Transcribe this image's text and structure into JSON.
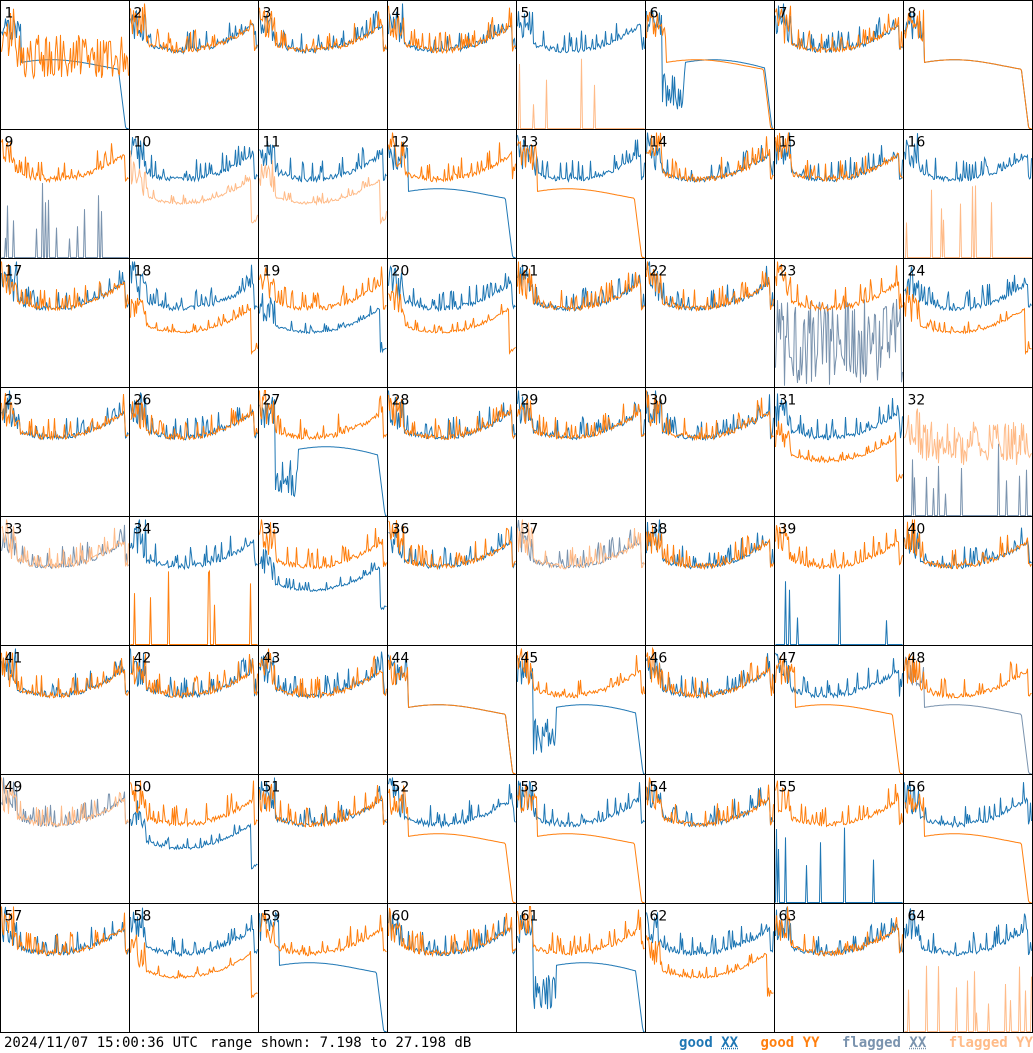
{
  "footer": {
    "timestamp": "2024/11/07 15:00:36 UTC",
    "range_text": "range shown: 7.198 to 27.198 dB",
    "legend": {
      "good_xx": {
        "word": "good",
        "pol": "XX"
      },
      "good_yy": {
        "word": "good",
        "pol": "YY"
      },
      "flagged_xx": {
        "word": "flagged",
        "pol": "XX"
      },
      "flagged_yy": {
        "word": "flagged",
        "pol": "YY"
      }
    }
  },
  "colors": {
    "good_xx": "#1f77b4",
    "good_yy": "#ff7f0e",
    "flagged_xx": "#7a93ae",
    "flagged_yy": "#ffbb88"
  },
  "chart_data": {
    "type": "line",
    "ylim": [
      7.198,
      27.198
    ],
    "yunit": "dB",
    "grid": false,
    "layout": "8x8 small multiples",
    "panels": [
      {
        "label": "1",
        "xx": "flat",
        "yy": "spiky",
        "xx_state": "good",
        "yy_state": "good"
      },
      {
        "label": "2",
        "xx": "normal",
        "yy": "normal",
        "xx_state": "good",
        "yy_state": "good"
      },
      {
        "label": "3",
        "xx": "normal",
        "yy": "normal",
        "xx_state": "good",
        "yy_state": "good"
      },
      {
        "label": "4",
        "xx": "normal",
        "yy": "normal",
        "xx_state": "good",
        "yy_state": "good"
      },
      {
        "label": "5",
        "xx": "normal",
        "yy": "spikes",
        "xx_state": "good",
        "yy_state": "flagged"
      },
      {
        "label": "6",
        "xx": "dip",
        "yy": "flat",
        "xx_state": "good",
        "yy_state": "good"
      },
      {
        "label": "7",
        "xx": "normal",
        "yy": "normal",
        "xx_state": "good",
        "yy_state": "good"
      },
      {
        "label": "8",
        "xx": "flat",
        "yy": "flat",
        "xx_state": "good",
        "yy_state": "good"
      },
      {
        "label": "9",
        "xx": "spikes",
        "yy": "normal",
        "xx_state": "flagged",
        "yy_state": "good"
      },
      {
        "label": "10",
        "xx": "normal",
        "yy": "low",
        "xx_state": "good",
        "yy_state": "flagged"
      },
      {
        "label": "11",
        "xx": "normal",
        "yy": "low",
        "xx_state": "good",
        "yy_state": "flagged"
      },
      {
        "label": "12",
        "xx": "flat",
        "yy": "normal",
        "xx_state": "good",
        "yy_state": "good"
      },
      {
        "label": "13",
        "xx": "normal",
        "yy": "flat",
        "xx_state": "good",
        "yy_state": "good"
      },
      {
        "label": "14",
        "xx": "normal",
        "yy": "normal",
        "xx_state": "good",
        "yy_state": "good"
      },
      {
        "label": "15",
        "xx": "normal",
        "yy": "normal",
        "xx_state": "good",
        "yy_state": "good"
      },
      {
        "label": "16",
        "xx": "normal",
        "yy": "spikes",
        "xx_state": "good",
        "yy_state": "flagged"
      },
      {
        "label": "17",
        "xx": "normal",
        "yy": "normal",
        "xx_state": "good",
        "yy_state": "good"
      },
      {
        "label": "18",
        "xx": "normal",
        "yy": "low",
        "xx_state": "good",
        "yy_state": "good"
      },
      {
        "label": "19",
        "xx": "low",
        "yy": "normal",
        "xx_state": "good",
        "yy_state": "good"
      },
      {
        "label": "20",
        "xx": "normal",
        "yy": "low",
        "xx_state": "good",
        "yy_state": "good"
      },
      {
        "label": "21",
        "xx": "normal",
        "yy": "normal",
        "xx_state": "good",
        "yy_state": "good"
      },
      {
        "label": "22",
        "xx": "normal",
        "yy": "normal",
        "xx_state": "good",
        "yy_state": "good"
      },
      {
        "label": "23",
        "xx": "noise",
        "yy": "normal",
        "xx_state": "flagged",
        "yy_state": "good"
      },
      {
        "label": "24",
        "xx": "normal",
        "yy": "low",
        "xx_state": "good",
        "yy_state": "good"
      },
      {
        "label": "25",
        "xx": "normal",
        "yy": "normal",
        "xx_state": "good",
        "yy_state": "good"
      },
      {
        "label": "26",
        "xx": "normal",
        "yy": "normal",
        "xx_state": "good",
        "yy_state": "good"
      },
      {
        "label": "27",
        "xx": "dip",
        "yy": "normal",
        "xx_state": "good",
        "yy_state": "good"
      },
      {
        "label": "28",
        "xx": "normal",
        "yy": "normal",
        "xx_state": "good",
        "yy_state": "good"
      },
      {
        "label": "29",
        "xx": "normal",
        "yy": "normal",
        "xx_state": "good",
        "yy_state": "good"
      },
      {
        "label": "30",
        "xx": "normal",
        "yy": "normal",
        "xx_state": "good",
        "yy_state": "good"
      },
      {
        "label": "31",
        "xx": "normal",
        "yy": "low",
        "xx_state": "good",
        "yy_state": "good"
      },
      {
        "label": "32",
        "xx": "spikes",
        "yy": "spiky",
        "xx_state": "flagged",
        "yy_state": "flagged"
      },
      {
        "label": "33",
        "xx": "normal",
        "yy": "normal",
        "xx_state": "flagged",
        "yy_state": "flagged"
      },
      {
        "label": "34",
        "xx": "normal",
        "yy": "spikes",
        "xx_state": "good",
        "yy_state": "good"
      },
      {
        "label": "35",
        "xx": "low",
        "yy": "normal",
        "xx_state": "good",
        "yy_state": "good"
      },
      {
        "label": "36",
        "xx": "normal",
        "yy": "normal",
        "xx_state": "good",
        "yy_state": "good"
      },
      {
        "label": "37",
        "xx": "normal",
        "yy": "normal",
        "xx_state": "flagged",
        "yy_state": "flagged"
      },
      {
        "label": "38",
        "xx": "normal",
        "yy": "normal",
        "xx_state": "good",
        "yy_state": "good"
      },
      {
        "label": "39",
        "xx": "spikes",
        "yy": "normal",
        "xx_state": "good",
        "yy_state": "good"
      },
      {
        "label": "40",
        "xx": "normal",
        "yy": "normal",
        "xx_state": "good",
        "yy_state": "good"
      },
      {
        "label": "41",
        "xx": "normal",
        "yy": "normal",
        "xx_state": "good",
        "yy_state": "good"
      },
      {
        "label": "42",
        "xx": "normal",
        "yy": "normal",
        "xx_state": "good",
        "yy_state": "good"
      },
      {
        "label": "43",
        "xx": "normal",
        "yy": "normal",
        "xx_state": "good",
        "yy_state": "good"
      },
      {
        "label": "44",
        "xx": "flat",
        "yy": "flat",
        "xx_state": "good",
        "yy_state": "good"
      },
      {
        "label": "45",
        "xx": "dip",
        "yy": "normal",
        "xx_state": "good",
        "yy_state": "good"
      },
      {
        "label": "46",
        "xx": "normal",
        "yy": "normal",
        "xx_state": "good",
        "yy_state": "good"
      },
      {
        "label": "47",
        "xx": "normal",
        "yy": "flat",
        "xx_state": "good",
        "yy_state": "good"
      },
      {
        "label": "48",
        "xx": "flat",
        "yy": "normal",
        "xx_state": "flagged",
        "yy_state": "good"
      },
      {
        "label": "49",
        "xx": "normal",
        "yy": "normal",
        "xx_state": "flagged",
        "yy_state": "flagged"
      },
      {
        "label": "50",
        "xx": "low",
        "yy": "normal",
        "xx_state": "good",
        "yy_state": "good"
      },
      {
        "label": "51",
        "xx": "normal",
        "yy": "normal",
        "xx_state": "good",
        "yy_state": "good"
      },
      {
        "label": "52",
        "xx": "normal",
        "yy": "flat",
        "xx_state": "good",
        "yy_state": "good"
      },
      {
        "label": "53",
        "xx": "normal",
        "yy": "flat",
        "xx_state": "good",
        "yy_state": "good"
      },
      {
        "label": "54",
        "xx": "normal",
        "yy": "normal",
        "xx_state": "good",
        "yy_state": "good"
      },
      {
        "label": "55",
        "xx": "spikes",
        "yy": "normal",
        "xx_state": "good",
        "yy_state": "good"
      },
      {
        "label": "56",
        "xx": "normal",
        "yy": "flat",
        "xx_state": "good",
        "yy_state": "good"
      },
      {
        "label": "57",
        "xx": "normal",
        "yy": "normal",
        "xx_state": "good",
        "yy_state": "good"
      },
      {
        "label": "58",
        "xx": "normal",
        "yy": "low",
        "xx_state": "good",
        "yy_state": "good"
      },
      {
        "label": "59",
        "xx": "flat",
        "yy": "normal",
        "xx_state": "good",
        "yy_state": "good"
      },
      {
        "label": "60",
        "xx": "normal",
        "yy": "normal",
        "xx_state": "good",
        "yy_state": "good"
      },
      {
        "label": "61",
        "xx": "dip",
        "yy": "normal",
        "xx_state": "good",
        "yy_state": "good"
      },
      {
        "label": "62",
        "xx": "normal",
        "yy": "low",
        "xx_state": "good",
        "yy_state": "good"
      },
      {
        "label": "63",
        "xx": "normal",
        "yy": "normal",
        "xx_state": "good",
        "yy_state": "good"
      },
      {
        "label": "64",
        "xx": "normal",
        "yy": "spikes",
        "xx_state": "good",
        "yy_state": "flagged"
      }
    ]
  }
}
